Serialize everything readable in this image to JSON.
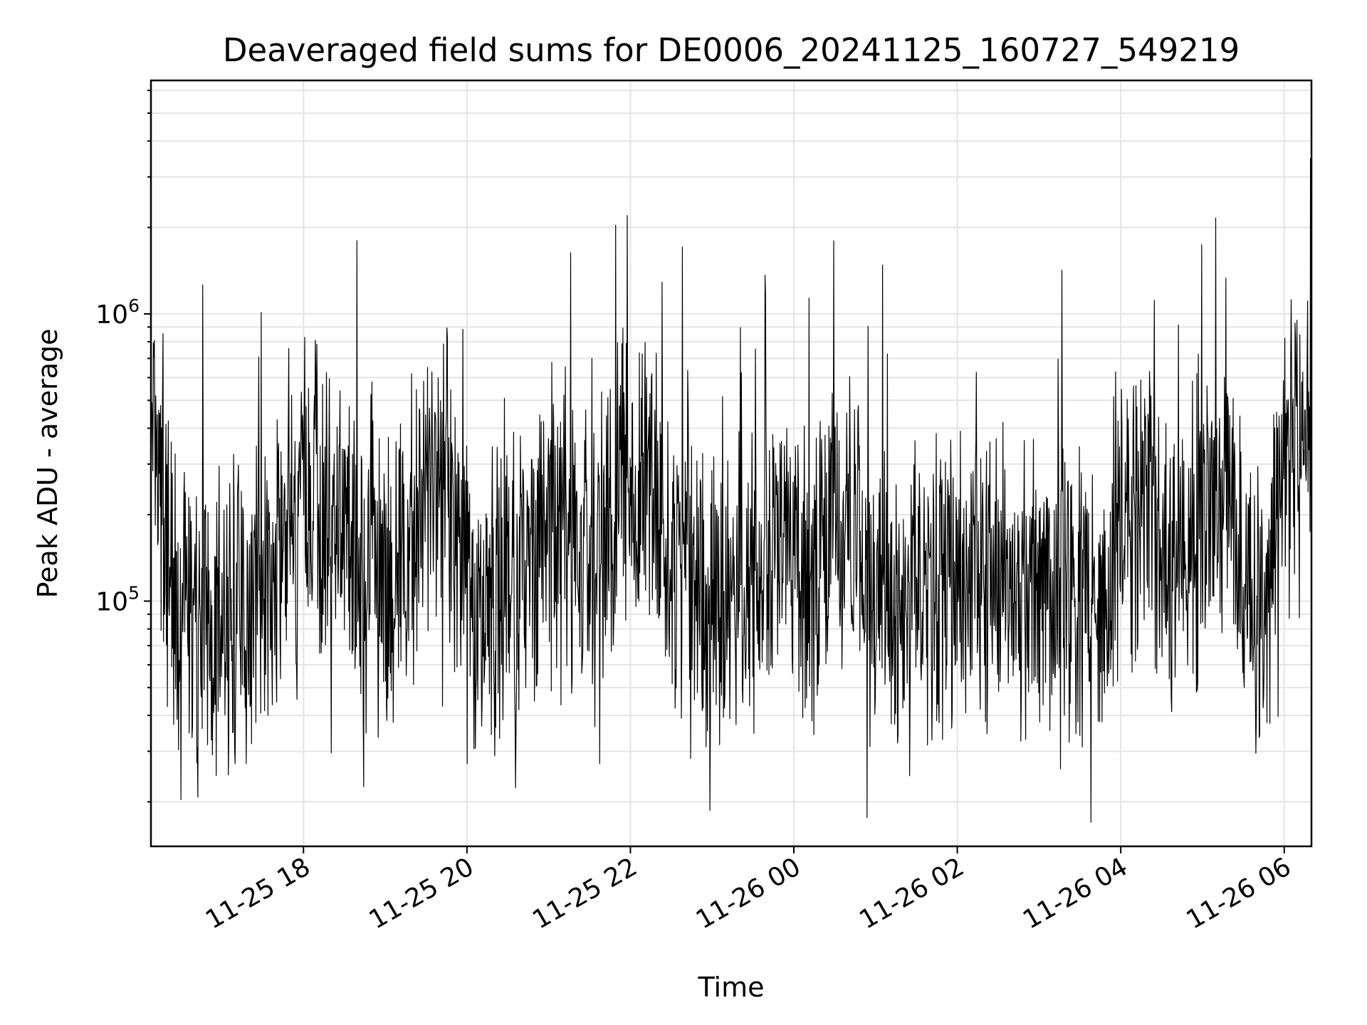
{
  "chart_data": {
    "type": "line",
    "title": "Deaveraged field sums for DE0006_20241125_160727_549219",
    "xlabel": "Time",
    "ylabel": "Peak ADU - average",
    "yscale": "log",
    "ylim": [
      14000,
      6500000
    ],
    "xlim": [
      "2024-11-25 16:08",
      "2024-11-26 06:20"
    ],
    "grid": true,
    "legend": "none",
    "line_color": "#000000",
    "x_ticks": [
      "11-25 18",
      "11-25 20",
      "11-25 22",
      "11-26 00",
      "11-26 02",
      "11-26 04",
      "11-26 06"
    ],
    "x_tick_times": [
      "2024-11-25 18:00",
      "2024-11-25 20:00",
      "2024-11-25 22:00",
      "2024-11-26 00:00",
      "2024-11-26 02:00",
      "2024-11-26 04:00",
      "2024-11-26 06:00"
    ],
    "y_ticks": [
      {
        "value": 100000,
        "base": "10",
        "exp": "5"
      },
      {
        "value": 1000000,
        "base": "10",
        "exp": "6"
      }
    ],
    "series": [
      {
        "x": [
          "2024-11-25 16:08",
          "2024-11-25 16:15",
          "2024-11-25 16:30",
          "2024-11-25 16:45",
          "2024-11-25 17:00",
          "2024-11-25 17:15",
          "2024-11-25 17:30",
          "2024-11-25 17:45",
          "2024-11-25 18:00",
          "2024-11-25 18:15",
          "2024-11-25 18:30",
          "2024-11-25 18:45",
          "2024-11-25 19:00",
          "2024-11-25 19:15",
          "2024-11-25 19:30",
          "2024-11-25 19:45",
          "2024-11-25 20:00",
          "2024-11-25 20:15",
          "2024-11-25 20:30",
          "2024-11-25 20:45",
          "2024-11-25 21:00",
          "2024-11-25 21:15",
          "2024-11-25 21:30",
          "2024-11-25 21:45",
          "2024-11-25 22:00",
          "2024-11-25 22:15",
          "2024-11-25 22:30",
          "2024-11-25 22:45",
          "2024-11-25 23:00",
          "2024-11-25 23:15",
          "2024-11-25 23:30",
          "2024-11-25 23:45",
          "2024-11-26 00:00",
          "2024-11-26 00:15",
          "2024-11-26 00:30",
          "2024-11-26 00:45",
          "2024-11-26 01:00",
          "2024-11-26 01:15",
          "2024-11-26 01:30",
          "2024-11-26 01:45",
          "2024-11-26 02:00",
          "2024-11-26 02:15",
          "2024-11-26 02:30",
          "2024-11-26 02:45",
          "2024-11-26 03:00",
          "2024-11-26 03:15",
          "2024-11-26 03:30",
          "2024-11-26 03:45",
          "2024-11-26 04:00",
          "2024-11-26 04:15",
          "2024-11-26 04:30",
          "2024-11-26 04:45",
          "2024-11-26 05:00",
          "2024-11-26 05:15",
          "2024-11-26 05:30",
          "2024-11-26 05:45",
          "2024-11-26 06:00",
          "2024-11-26 06:15",
          "2024-11-26 06:20"
        ],
        "values": [
          300000,
          200000,
          80000,
          70000,
          90000,
          85000,
          110000,
          180000,
          230000,
          200000,
          150000,
          120000,
          110000,
          140000,
          220000,
          300000,
          100000,
          90000,
          110000,
          150000,
          180000,
          160000,
          140000,
          170000,
          300000,
          230000,
          130000,
          110000,
          100000,
          110000,
          120000,
          130000,
          140000,
          120000,
          230000,
          150000,
          110000,
          120000,
          130000,
          110000,
          120000,
          130000,
          110000,
          100000,
          120000,
          110000,
          100000,
          110000,
          190000,
          240000,
          150000,
          130000,
          180000,
          250000,
          120000,
          90000,
          280000,
          350000,
          450000
        ]
      }
    ]
  }
}
